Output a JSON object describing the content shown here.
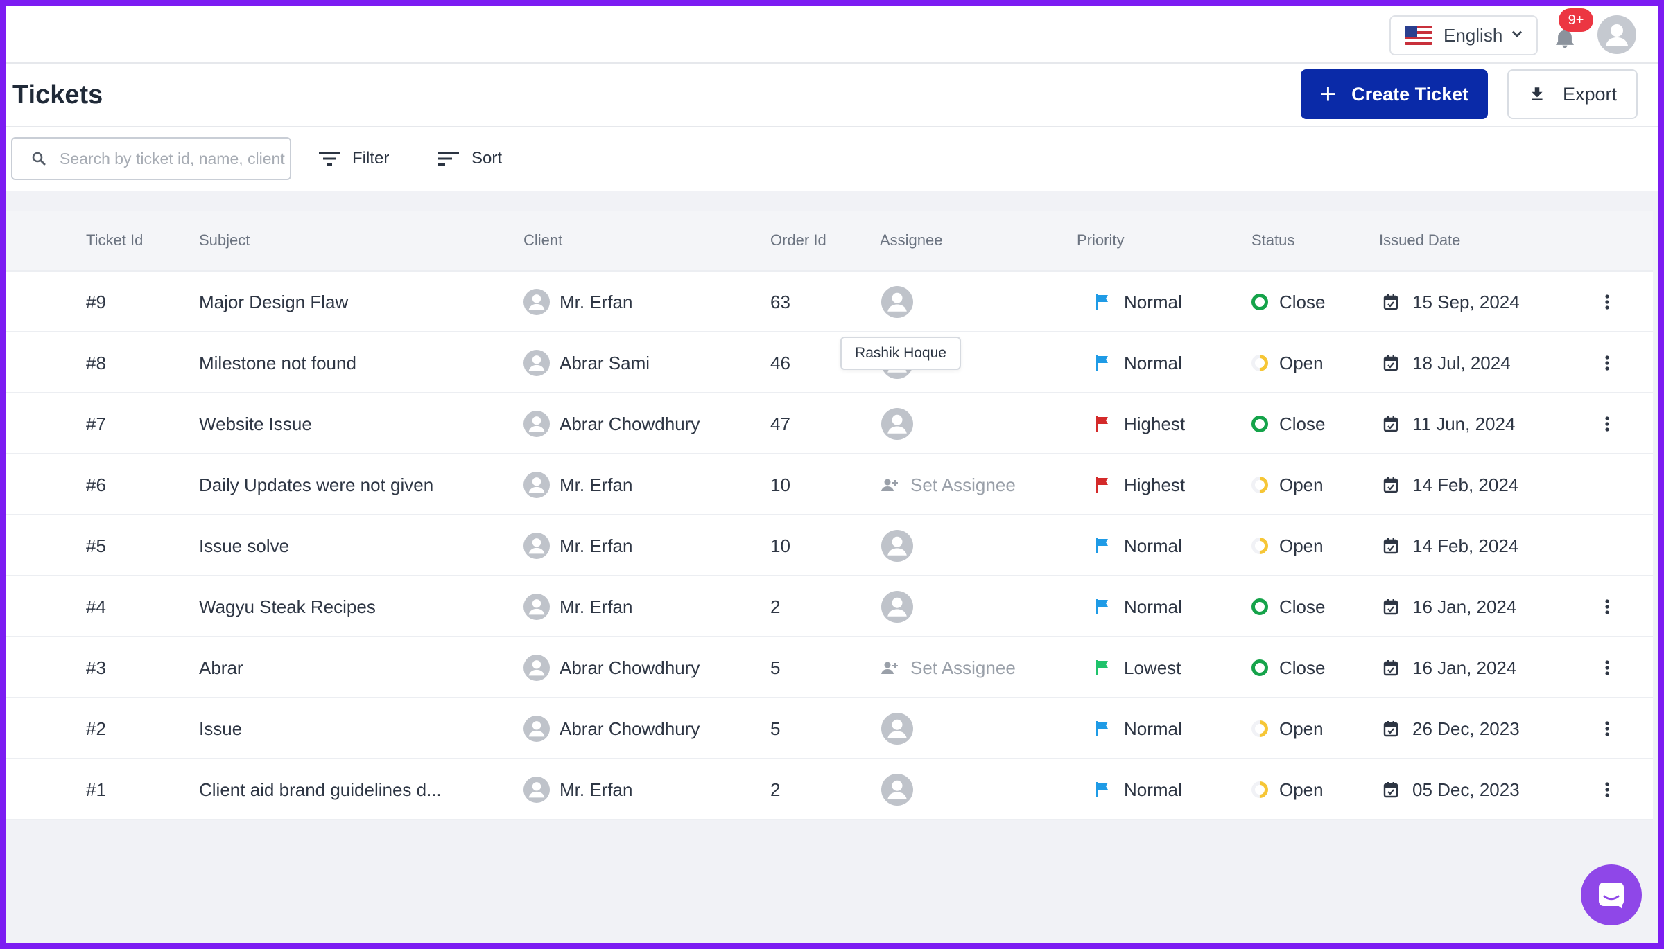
{
  "topbar": {
    "language": "English",
    "notification_badge": "9+"
  },
  "header": {
    "title": "Tickets",
    "create_label": "Create Ticket",
    "export_label": "Export"
  },
  "toolbar": {
    "search_placeholder": "Search by ticket id, name, client",
    "filter_label": "Filter",
    "sort_label": "Sort"
  },
  "table": {
    "columns": [
      "Ticket Id",
      "Subject",
      "Client",
      "Order Id",
      "Assignee",
      "Priority",
      "Status",
      "Issued Date"
    ],
    "rows": [
      {
        "id": "#9",
        "subject": "Major Design Flaw",
        "client": "Mr. Erfan",
        "order": "63",
        "assignee": "avatar",
        "priority": "Normal",
        "status": "Close",
        "date": "15 Sep, 2024",
        "menu": true
      },
      {
        "id": "#8",
        "subject": "Milestone not found",
        "client": "Abrar Sami",
        "order": "46",
        "assignee": "avatar",
        "priority": "Normal",
        "status": "Open",
        "date": "18 Jul, 2024",
        "menu": true
      },
      {
        "id": "#7",
        "subject": "Website Issue",
        "client": "Abrar Chowdhury",
        "order": "47",
        "assignee": "avatar",
        "priority": "Highest",
        "status": "Close",
        "date": "11 Jun, 2024",
        "menu": true
      },
      {
        "id": "#6",
        "subject": "Daily Updates were not given",
        "client": "Mr. Erfan",
        "order": "10",
        "assignee": "Set Assignee",
        "priority": "Highest",
        "status": "Open",
        "date": "14 Feb, 2024",
        "menu": false
      },
      {
        "id": "#5",
        "subject": "Issue solve",
        "client": "Mr. Erfan",
        "order": "10",
        "assignee": "avatar",
        "priority": "Normal",
        "status": "Open",
        "date": "14 Feb, 2024",
        "menu": false
      },
      {
        "id": "#4",
        "subject": "Wagyu Steak Recipes",
        "client": "Mr. Erfan",
        "order": "2",
        "assignee": "avatar",
        "priority": "Normal",
        "status": "Close",
        "date": "16 Jan, 2024",
        "menu": true
      },
      {
        "id": "#3",
        "subject": "Abrar",
        "client": "Abrar Chowdhury",
        "order": "5",
        "assignee": "Set Assignee",
        "priority": "Lowest",
        "status": "Close",
        "date": "16 Jan, 2024",
        "menu": true
      },
      {
        "id": "#2",
        "subject": "Issue",
        "client": "Abrar Chowdhury",
        "order": "5",
        "assignee": "avatar",
        "priority": "Normal",
        "status": "Open",
        "date": "26 Dec, 2023",
        "menu": true
      },
      {
        "id": "#1",
        "subject": "Client aid brand guidelines d...",
        "client": "Mr. Erfan",
        "order": "2",
        "assignee": "avatar",
        "priority": "Normal",
        "status": "Open",
        "date": "05 Dec, 2023",
        "menu": true
      }
    ]
  },
  "tooltip": "Rashik Hoque",
  "colors": {
    "primary": "#0a2aa8",
    "priority_normal": "#1f9be6",
    "priority_highest": "#d42a2a",
    "priority_lowest": "#1fc36b",
    "status_close": "#15a34a",
    "status_open": "#f6c636",
    "frame": "#7c1cf2",
    "chat": "#8f47e8"
  }
}
